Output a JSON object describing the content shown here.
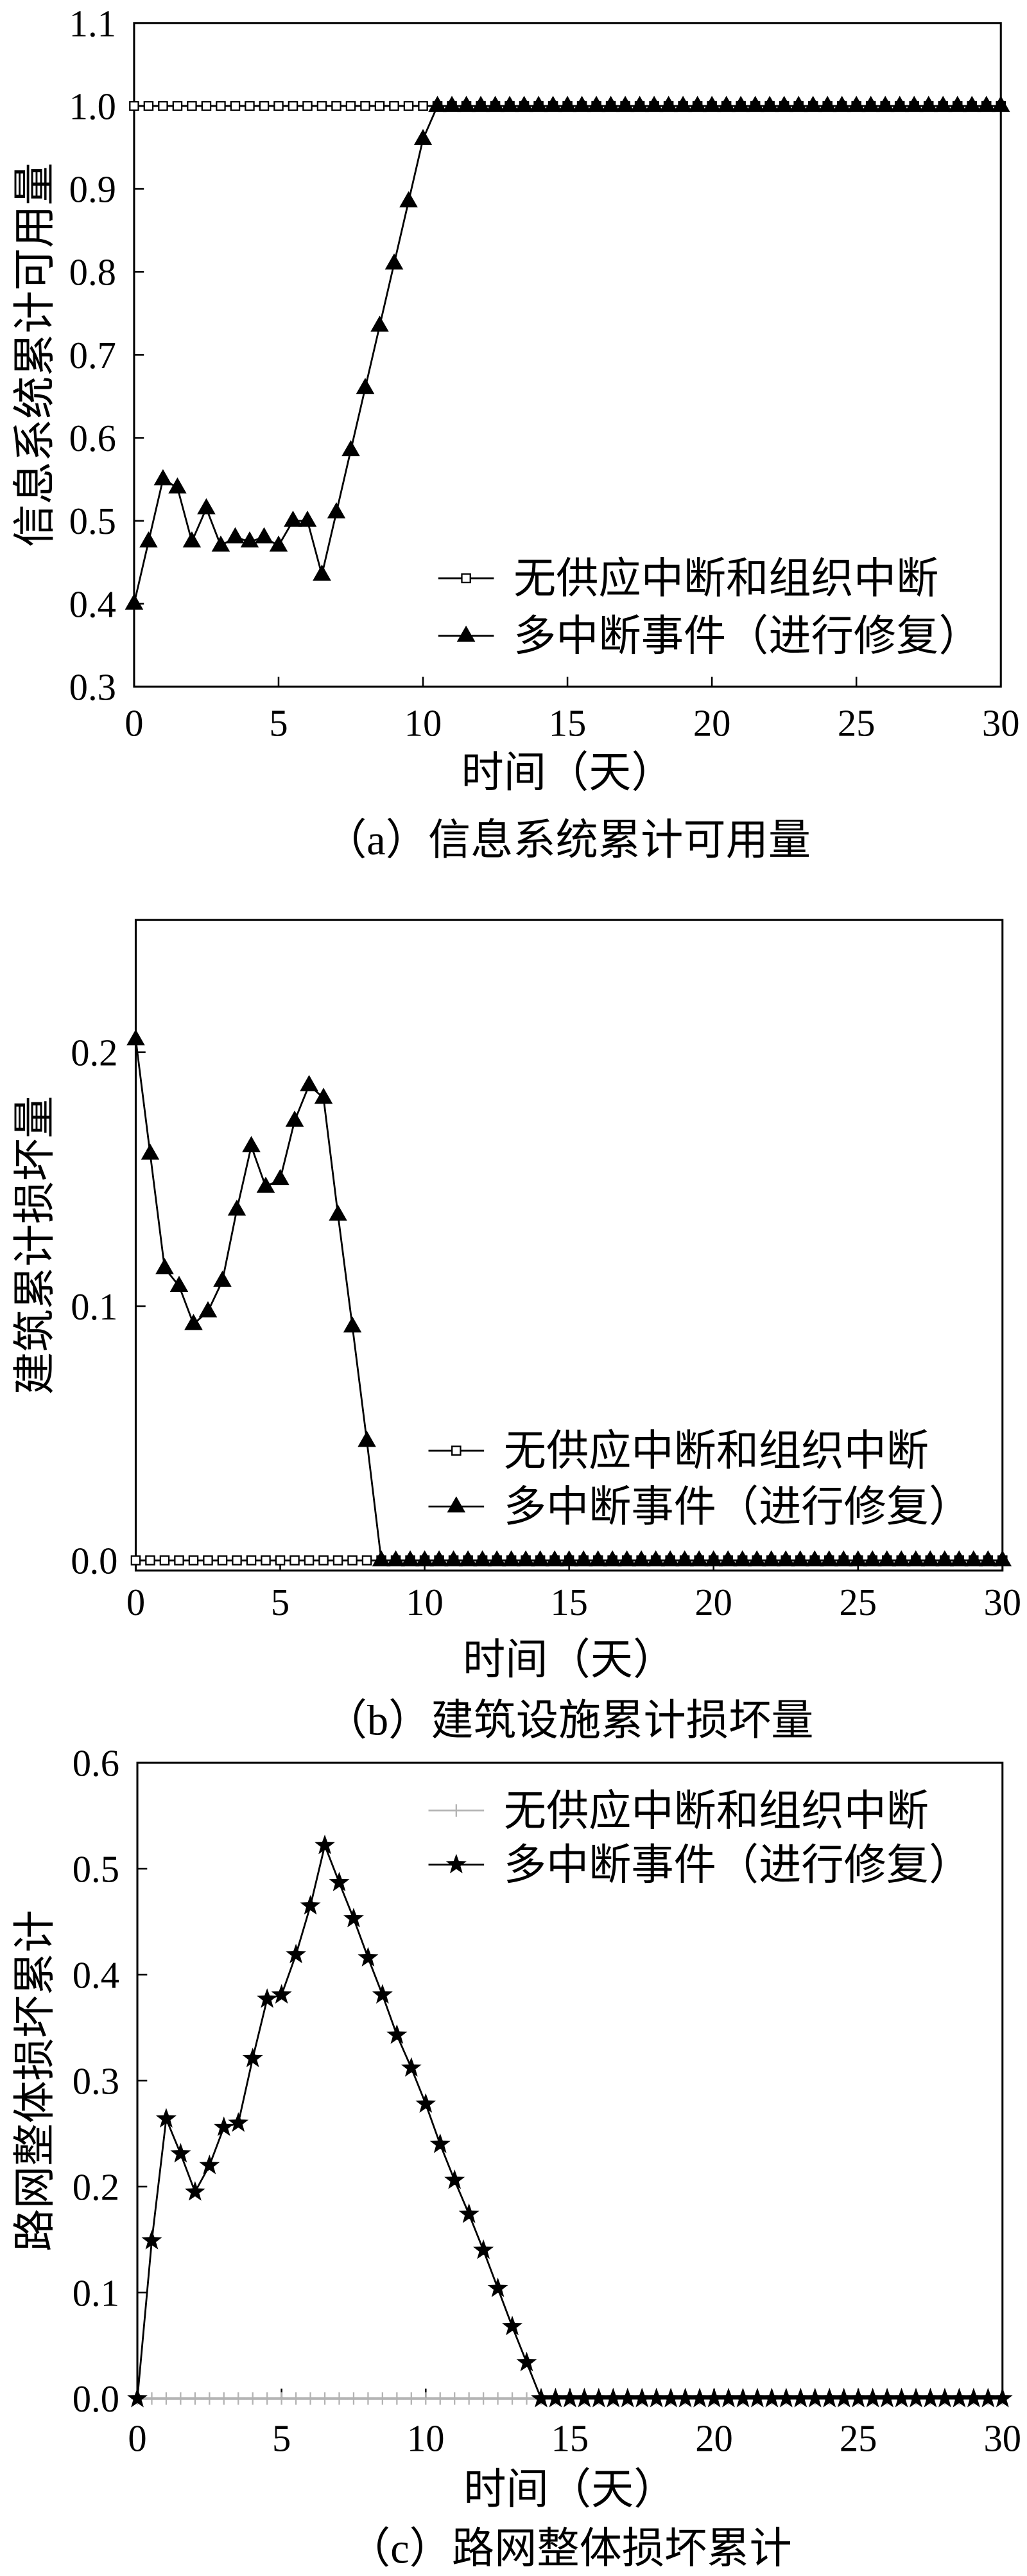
{
  "chart_data": [
    {
      "type": "line",
      "caption": "（a）信息系统累计可用量",
      "xlabel": "时间（天）",
      "ylabel": "信息系统累计可用量",
      "xlim": [
        0,
        30
      ],
      "ylim": [
        0.3,
        1.1
      ],
      "xtick_labels": [
        "0",
        "5",
        "10",
        "15",
        "20",
        "25",
        "30"
      ],
      "ytick_labels": [
        "0.3",
        "0.4",
        "0.5",
        "0.6",
        "0.7",
        "0.8",
        "0.9",
        "1.0",
        "1.1"
      ],
      "grid": false,
      "legend": "lower-right",
      "x": [
        0,
        0.5,
        1,
        1.5,
        2,
        2.5,
        3,
        3.5,
        4,
        4.5,
        5,
        5.5,
        6,
        6.5,
        7,
        7.5,
        8,
        8.5,
        9,
        9.5,
        10,
        10.5,
        11,
        11.5,
        12,
        12.5,
        13,
        13.5,
        14,
        14.5,
        15,
        15.5,
        16,
        16.5,
        17,
        17.5,
        18,
        18.5,
        19,
        19.5,
        20,
        20.5,
        21,
        21.5,
        22,
        22.5,
        23,
        23.5,
        24,
        24.5,
        25,
        25.5,
        26,
        26.5,
        27,
        27.5,
        28,
        28.5,
        29,
        29.5,
        30
      ],
      "series": [
        {
          "name": "无供应中断和组织中断",
          "marker": "open-square",
          "color": "#000000",
          "values": [
            1.0,
            1.0,
            1.0,
            1.0,
            1.0,
            1.0,
            1.0,
            1.0,
            1.0,
            1.0,
            1.0,
            1.0,
            1.0,
            1.0,
            1.0,
            1.0,
            1.0,
            1.0,
            1.0,
            1.0,
            1.0,
            1.0,
            1.0,
            1.0,
            1.0,
            1.0,
            1.0,
            1.0,
            1.0,
            1.0,
            1.0,
            1.0,
            1.0,
            1.0,
            1.0,
            1.0,
            1.0,
            1.0,
            1.0,
            1.0,
            1.0,
            1.0,
            1.0,
            1.0,
            1.0,
            1.0,
            1.0,
            1.0,
            1.0,
            1.0,
            1.0,
            1.0,
            1.0,
            1.0,
            1.0,
            1.0,
            1.0,
            1.0,
            1.0,
            1.0,
            1.0
          ]
        },
        {
          "name": "多中断事件（进行修复）",
          "marker": "filled-triangle",
          "color": "#000000",
          "values": [
            0.4,
            0.475,
            0.55,
            0.54,
            0.475,
            0.515,
            0.47,
            0.48,
            0.475,
            0.48,
            0.47,
            0.5,
            0.5,
            0.435,
            0.51,
            0.585,
            0.66,
            0.735,
            0.81,
            0.885,
            0.96,
            1.0,
            1.0,
            1.0,
            1.0,
            1.0,
            1.0,
            1.0,
            1.0,
            1.0,
            1.0,
            1.0,
            1.0,
            1.0,
            1.0,
            1.0,
            1.0,
            1.0,
            1.0,
            1.0,
            1.0,
            1.0,
            1.0,
            1.0,
            1.0,
            1.0,
            1.0,
            1.0,
            1.0,
            1.0,
            1.0,
            1.0,
            1.0,
            1.0,
            1.0,
            1.0,
            1.0,
            1.0,
            1.0,
            1.0,
            1.0
          ]
        }
      ]
    },
    {
      "type": "line",
      "caption": "（b）建筑设施累计损坏量",
      "xlabel": "时间（天）",
      "ylabel": "建筑累计损坏量",
      "xlim": [
        0,
        30
      ],
      "ylim": [
        -0.004,
        0.252
      ],
      "xtick_labels": [
        "0",
        "5",
        "10",
        "15",
        "20",
        "25",
        "30"
      ],
      "ytick_labels": [
        "0.0",
        "0.1",
        "0.2"
      ],
      "grid": false,
      "legend": "lower-right",
      "x": [
        0,
        0.5,
        1,
        1.5,
        2,
        2.5,
        3,
        3.5,
        4,
        4.5,
        5,
        5.5,
        6,
        6.5,
        7,
        7.5,
        8,
        8.5,
        9,
        9.5,
        10,
        10.5,
        11,
        11.5,
        12,
        12.5,
        13,
        13.5,
        14,
        14.5,
        15,
        15.5,
        16,
        16.5,
        17,
        17.5,
        18,
        18.5,
        19,
        19.5,
        20,
        20.5,
        21,
        21.5,
        22,
        22.5,
        23,
        23.5,
        24,
        24.5,
        25,
        25.5,
        26,
        26.5,
        27,
        27.5,
        28,
        28.5,
        29,
        29.5,
        30
      ],
      "series": [
        {
          "name": "无供应中断和组织中断",
          "marker": "open-square",
          "color": "#000000",
          "values": [
            0,
            0,
            0,
            0,
            0,
            0,
            0,
            0,
            0,
            0,
            0,
            0,
            0,
            0,
            0,
            0,
            0,
            0,
            0,
            0,
            0,
            0,
            0,
            0,
            0,
            0,
            0,
            0,
            0,
            0,
            0,
            0,
            0,
            0,
            0,
            0,
            0,
            0,
            0,
            0,
            0,
            0,
            0,
            0,
            0,
            0,
            0,
            0,
            0,
            0,
            0,
            0,
            0,
            0,
            0,
            0,
            0,
            0,
            0,
            0,
            0
          ]
        },
        {
          "name": "多中断事件（进行修复）",
          "marker": "filled-triangle",
          "color": "#000000",
          "values": [
            0.205,
            0.16,
            0.115,
            0.108,
            0.093,
            0.098,
            0.11,
            0.138,
            0.163,
            0.147,
            0.15,
            0.173,
            0.187,
            0.182,
            0.136,
            0.092,
            0.047,
            0,
            0,
            0,
            0,
            0,
            0,
            0,
            0,
            0,
            0,
            0,
            0,
            0,
            0,
            0,
            0,
            0,
            0,
            0,
            0,
            0,
            0,
            0,
            0,
            0,
            0,
            0,
            0,
            0,
            0,
            0,
            0,
            0,
            0,
            0,
            0,
            0,
            0,
            0,
            0,
            0,
            0,
            0,
            0
          ]
        }
      ]
    },
    {
      "type": "line",
      "caption": "（c）路网整体损坏累计",
      "xlabel": "时间（天）",
      "ylabel": "路网整体损坏累计",
      "xlim": [
        0,
        30
      ],
      "ylim": [
        0,
        0.6
      ],
      "xtick_labels": [
        "0",
        "5",
        "10",
        "15",
        "20",
        "25",
        "30"
      ],
      "ytick_labels": [
        "0.0",
        "0.1",
        "0.2",
        "0.3",
        "0.4",
        "0.5",
        "0.6"
      ],
      "grid": false,
      "legend": "upper-right",
      "x": [
        0,
        0.5,
        1,
        1.5,
        2,
        2.5,
        3,
        3.5,
        4,
        4.5,
        5,
        5.5,
        6,
        6.5,
        7,
        7.5,
        8,
        8.5,
        9,
        9.5,
        10,
        10.5,
        11,
        11.5,
        12,
        12.5,
        13,
        13.5,
        14,
        14.5,
        15,
        15.5,
        16,
        16.5,
        17,
        17.5,
        18,
        18.5,
        19,
        19.5,
        20,
        20.5,
        21,
        21.5,
        22,
        22.5,
        23,
        23.5,
        24,
        24.5,
        25,
        25.5,
        26,
        26.5,
        27,
        27.5,
        28,
        28.5,
        29,
        29.5,
        30
      ],
      "series": [
        {
          "name": "无供应中断和组织中断",
          "marker": "plus",
          "color": "#b3b3b3",
          "values": [
            0,
            0,
            0,
            0,
            0,
            0,
            0,
            0,
            0,
            0,
            0,
            0,
            0,
            0,
            0,
            0,
            0,
            0,
            0,
            0,
            0,
            0,
            0,
            0,
            0,
            0,
            0,
            0,
            0,
            0,
            0,
            0,
            0,
            0,
            0,
            0,
            0,
            0,
            0,
            0,
            0,
            0,
            0,
            0,
            0,
            0,
            0,
            0,
            0,
            0,
            0,
            0,
            0,
            0,
            0,
            0,
            0,
            0,
            0,
            0,
            0
          ]
        },
        {
          "name": "多中断事件（进行修复）",
          "marker": "star",
          "color": "#000000",
          "values": [
            0,
            0.149,
            0.264,
            0.231,
            0.195,
            0.22,
            0.256,
            0.26,
            0.321,
            0.377,
            0.381,
            0.419,
            0.465,
            0.522,
            0.487,
            0.453,
            0.416,
            0.381,
            0.343,
            0.312,
            0.278,
            0.24,
            0.206,
            0.174,
            0.14,
            0.104,
            0.068,
            0.034,
            0,
            0,
            0,
            0,
            0,
            0,
            0,
            0,
            0,
            0,
            0,
            0,
            0,
            0,
            0,
            0,
            0,
            0,
            0,
            0,
            0,
            0,
            0,
            0,
            0,
            0,
            0,
            0,
            0,
            0,
            0,
            0,
            0
          ]
        }
      ]
    }
  ]
}
